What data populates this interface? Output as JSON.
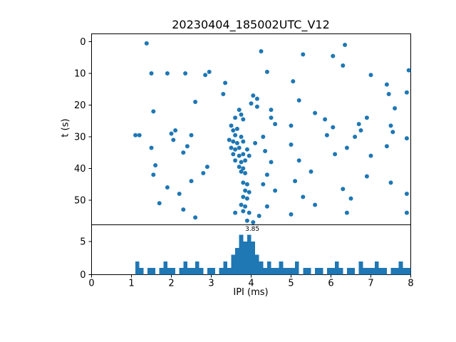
{
  "figure": {
    "title": "20230404_185002UTC_V12",
    "xlabel": "IPI (ms)",
    "ylabel_top": "t (s)"
  },
  "chart_data": [
    {
      "type": "scatter",
      "title": "20230404_185002UTC_V12",
      "xlabel": "IPI (ms)",
      "ylabel": "t (s)",
      "xlim": [
        0,
        8
      ],
      "ylim": [
        57.8,
        -2.5
      ],
      "y_inverted": true,
      "x_ticks": [
        0,
        1,
        2,
        3,
        4,
        5,
        6,
        7,
        8
      ],
      "y_ticks": [
        0,
        10,
        20,
        30,
        40,
        50
      ],
      "marker_color": "#1f77b4",
      "points": [
        [
          1.38,
          0.5
        ],
        [
          6.35,
          1.0
        ],
        [
          4.25,
          3.0
        ],
        [
          5.3,
          4.0
        ],
        [
          6.05,
          4.5
        ],
        [
          6.3,
          7.5
        ],
        [
          7.95,
          9.0
        ],
        [
          1.5,
          10.0
        ],
        [
          1.9,
          10.0
        ],
        [
          2.35,
          10.0
        ],
        [
          2.85,
          10.5
        ],
        [
          2.95,
          9.5
        ],
        [
          4.4,
          9.5
        ],
        [
          7.0,
          10.5
        ],
        [
          3.35,
          13.0
        ],
        [
          5.05,
          12.5
        ],
        [
          7.4,
          13.5
        ],
        [
          3.3,
          16.5
        ],
        [
          4.05,
          17.0
        ],
        [
          4.15,
          18.0
        ],
        [
          2.6,
          19.0
        ],
        [
          5.2,
          18.5
        ],
        [
          7.45,
          16.5
        ],
        [
          7.9,
          16.0
        ],
        [
          4.0,
          19.5
        ],
        [
          4.15,
          20.5
        ],
        [
          3.7,
          21.5
        ],
        [
          3.75,
          23.0
        ],
        [
          1.55,
          22.0
        ],
        [
          4.5,
          21.5
        ],
        [
          5.6,
          22.5
        ],
        [
          7.6,
          21.0
        ],
        [
          3.6,
          24.0
        ],
        [
          3.8,
          24.5
        ],
        [
          4.5,
          24.0
        ],
        [
          5.85,
          24.5
        ],
        [
          6.9,
          24.0
        ],
        [
          1.1,
          29.5
        ],
        [
          1.2,
          29.5
        ],
        [
          2.1,
          28.0
        ],
        [
          3.5,
          26.5
        ],
        [
          3.55,
          28.0
        ],
        [
          3.65,
          27.5
        ],
        [
          4.6,
          26.0
        ],
        [
          5.0,
          26.5
        ],
        [
          6.05,
          27.0
        ],
        [
          6.7,
          26.0
        ],
        [
          6.75,
          28.0
        ],
        [
          7.5,
          26.5
        ],
        [
          7.55,
          28.5
        ],
        [
          2.0,
          29.0
        ],
        [
          2.5,
          29.5
        ],
        [
          3.6,
          29.5
        ],
        [
          3.75,
          30.0
        ],
        [
          4.3,
          30.0
        ],
        [
          5.9,
          29.5
        ],
        [
          6.6,
          30.0
        ],
        [
          7.9,
          30.5
        ],
        [
          2.05,
          31.0
        ],
        [
          3.45,
          31.0
        ],
        [
          3.55,
          31.5
        ],
        [
          3.65,
          32.0
        ],
        [
          3.8,
          31.5
        ],
        [
          4.1,
          32.0
        ],
        [
          5.0,
          32.5
        ],
        [
          1.5,
          33.5
        ],
        [
          2.4,
          33.0
        ],
        [
          3.5,
          33.5
        ],
        [
          3.6,
          34.0
        ],
        [
          3.7,
          33.5
        ],
        [
          3.9,
          34.0
        ],
        [
          4.35,
          34.5
        ],
        [
          6.4,
          33.5
        ],
        [
          7.4,
          33.0
        ],
        [
          2.3,
          35.0
        ],
        [
          3.55,
          35.5
        ],
        [
          3.7,
          36.0
        ],
        [
          3.8,
          35.5
        ],
        [
          3.95,
          36.0
        ],
        [
          6.1,
          35.5
        ],
        [
          7.0,
          36.0
        ],
        [
          3.6,
          37.5
        ],
        [
          3.75,
          38.0
        ],
        [
          3.85,
          37.5
        ],
        [
          4.5,
          38.0
        ],
        [
          5.2,
          37.5
        ],
        [
          1.6,
          39.0
        ],
        [
          2.9,
          39.5
        ],
        [
          3.7,
          39.5
        ],
        [
          3.8,
          40.0
        ],
        [
          1.55,
          42.0
        ],
        [
          2.8,
          41.5
        ],
        [
          3.75,
          41.0
        ],
        [
          3.85,
          41.5
        ],
        [
          4.4,
          42.0
        ],
        [
          5.5,
          41.0
        ],
        [
          6.9,
          42.5
        ],
        [
          2.5,
          44.0
        ],
        [
          3.8,
          44.5
        ],
        [
          3.9,
          45.0
        ],
        [
          4.3,
          45.0
        ],
        [
          5.1,
          44.0
        ],
        [
          7.5,
          44.5
        ],
        [
          1.9,
          46.0
        ],
        [
          3.85,
          47.0
        ],
        [
          3.95,
          47.5
        ],
        [
          4.6,
          47.0
        ],
        [
          6.3,
          46.5
        ],
        [
          2.2,
          48.0
        ],
        [
          3.8,
          49.0
        ],
        [
          3.9,
          49.5
        ],
        [
          5.3,
          49.0
        ],
        [
          6.5,
          49.5
        ],
        [
          7.9,
          48.0
        ],
        [
          1.7,
          51.0
        ],
        [
          3.75,
          51.5
        ],
        [
          3.85,
          52.0
        ],
        [
          4.4,
          52.0
        ],
        [
          5.6,
          51.5
        ],
        [
          2.3,
          53.0
        ],
        [
          3.6,
          54.0
        ],
        [
          3.8,
          53.5
        ],
        [
          3.95,
          54.0
        ],
        [
          4.2,
          55.0
        ],
        [
          5.0,
          54.5
        ],
        [
          6.4,
          54.0
        ],
        [
          2.6,
          55.5
        ],
        [
          7.9,
          54.0
        ],
        [
          3.9,
          56.5
        ],
        [
          4.05,
          57.0
        ]
      ]
    },
    {
      "type": "bar",
      "xlabel": "IPI (ms)",
      "xlim": [
        0,
        8
      ],
      "ylim": [
        0,
        7.5
      ],
      "x_ticks": [
        0,
        1,
        2,
        3,
        4,
        5,
        6,
        7,
        8
      ],
      "y_ticks": [
        0,
        5
      ],
      "bar_color": "#1f77b4",
      "bin_start": 0,
      "bin_width": 0.1,
      "values": [
        0,
        0,
        0,
        0,
        0,
        0,
        0,
        0,
        0,
        0,
        0,
        2,
        1,
        0,
        1,
        1,
        0,
        1,
        2,
        1,
        1,
        0,
        1,
        2,
        1,
        1,
        2,
        1,
        0,
        1,
        1,
        0,
        1,
        2,
        1,
        3,
        4,
        6,
        5,
        6,
        5,
        3,
        2,
        1,
        2,
        1,
        1,
        2,
        1,
        1,
        1,
        2,
        0,
        1,
        1,
        0,
        1,
        1,
        0,
        1,
        1,
        2,
        1,
        0,
        1,
        1,
        0,
        2,
        1,
        1,
        1,
        2,
        1,
        1,
        0,
        1,
        1,
        2,
        1,
        1
      ],
      "annotation": {
        "text": "3.85",
        "x": 3.85,
        "y": 6.6
      }
    }
  ]
}
